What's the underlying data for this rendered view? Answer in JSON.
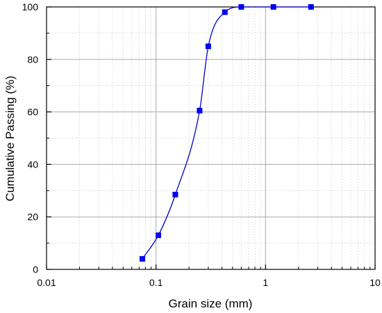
{
  "chart_data": {
    "type": "scatter",
    "xlabel": "Grain size (mm)",
    "ylabel": "Cumulative Passing (%)",
    "xscale": "log",
    "xlim": [
      0.01,
      10
    ],
    "ylim": [
      0,
      100
    ],
    "x_ticks": [
      "0.01",
      "0.1",
      "1",
      "10"
    ],
    "y_ticks": [
      "0",
      "20",
      "40",
      "60",
      "80",
      "100"
    ],
    "grid": true,
    "legend": "none",
    "series": [
      {
        "marker_color": "#0000ee",
        "line_color": "#0000cc",
        "x": [
          0.075,
          0.105,
          0.15,
          0.25,
          0.3,
          0.425,
          0.6,
          1.18,
          2.6
        ],
        "y": [
          4,
          13,
          28.5,
          60.5,
          85,
          98,
          100,
          100,
          100
        ]
      }
    ]
  }
}
